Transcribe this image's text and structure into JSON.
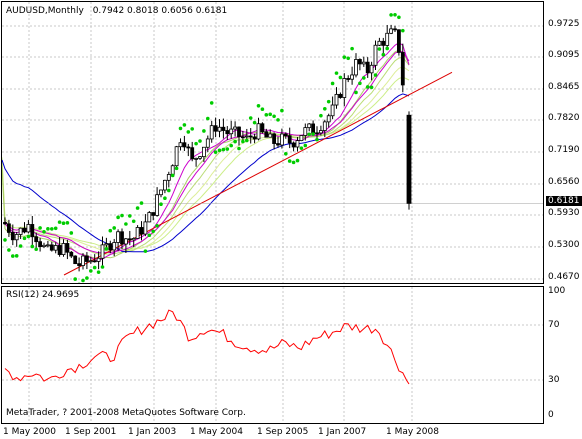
{
  "header": {
    "symbol_label": "AUDUSD,Monthly",
    "ohlc": "0.7942 0.8018 0.6056 0.6181"
  },
  "rsi": {
    "label": "RSI(12) 24.9695"
  },
  "copyright": "MetaTrader, ? 2001-2008 MetaQuotes Software Corp.",
  "price_axis": [
    "0.9725",
    "0.9095",
    "0.8465",
    "0.7820",
    "0.7190",
    "0.6560",
    "0.5930",
    "0.5300",
    "0.4670"
  ],
  "current_price": "0.6181",
  "rsi_axis": [
    "100",
    "70",
    "30",
    "0"
  ],
  "time_axis": [
    "1 May 2000",
    "1 Sep 2001",
    "1 Jan 2003",
    "1 May 2004",
    "1 Sep 2005",
    "1 Jan 2007",
    "1 May 2008"
  ],
  "colors": {
    "candle_up": "#ffffff",
    "candle_down": "#000000",
    "psar": "#00cc00",
    "rsi_line": "#ff0000",
    "ma_blue": "#0000cc",
    "ma_magenta": "#cc00cc",
    "trendline": "#dd0000",
    "fan_colors": [
      "#ccee88",
      "#ddee99",
      "#bbdd77",
      "#aad066"
    ],
    "grid": "#c8c8c8"
  },
  "chart_data": [
    {
      "type": "candlestick",
      "title": "AUDUSD,Monthly",
      "ylim": [
        0.467,
        0.9725
      ],
      "x": [
        "2000-05",
        "2000-09",
        "2001-01",
        "2001-05",
        "2001-09",
        "2002-01",
        "2002-05",
        "2002-09",
        "2003-01",
        "2003-05",
        "2003-09",
        "2004-01",
        "2004-05",
        "2004-09",
        "2005-01",
        "2005-05",
        "2005-09",
        "2006-01",
        "2006-05",
        "2006-09",
        "2007-01",
        "2007-05",
        "2007-09",
        "2008-01",
        "2008-05",
        "2008-09",
        "2008-10"
      ],
      "close": [
        0.575,
        0.543,
        0.556,
        0.508,
        0.495,
        0.512,
        0.56,
        0.545,
        0.6,
        0.645,
        0.7,
        0.765,
        0.7,
        0.745,
        0.78,
        0.755,
        0.76,
        0.745,
        0.76,
        0.775,
        0.79,
        0.84,
        0.88,
        0.92,
        0.95,
        0.8,
        0.6181
      ],
      "series": [
        {
          "name": "Parabolic SAR"
        },
        {
          "name": "Moving averages"
        }
      ]
    },
    {
      "type": "line",
      "title": "RSI(12) 24.9695",
      "ylim": [
        0,
        100
      ],
      "x": [
        "2000-05",
        "2000-09",
        "2001-01",
        "2001-05",
        "2001-09",
        "2002-01",
        "2002-05",
        "2002-09",
        "2003-01",
        "2003-05",
        "2003-09",
        "2004-01",
        "2004-05",
        "2004-09",
        "2005-01",
        "2005-05",
        "2005-09",
        "2006-01",
        "2006-05",
        "2006-09",
        "2007-01",
        "2007-05",
        "2007-09",
        "2008-01",
        "2008-05",
        "2008-09",
        "2008-10"
      ],
      "values": [
        38,
        30,
        34,
        28,
        36,
        40,
        48,
        46,
        62,
        70,
        76,
        83,
        62,
        70,
        66,
        58,
        54,
        52,
        58,
        54,
        62,
        66,
        72,
        70,
        70,
        48,
        24.97
      ]
    }
  ]
}
